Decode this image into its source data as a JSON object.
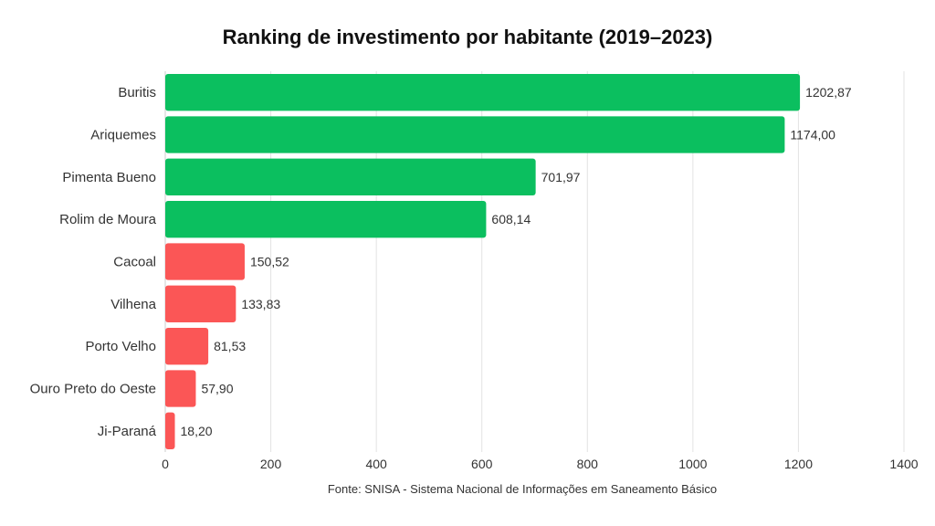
{
  "chart_data": {
    "type": "bar",
    "orientation": "horizontal",
    "title": "Ranking de investimento por habitante (2019–2023)",
    "categories": [
      "Buritis",
      "Ariquemes",
      "Pimenta Bueno",
      "Rolim de Moura",
      "Cacoal",
      "Vilhena",
      "Porto Velho",
      "Ouro Preto do Oeste",
      "Ji-Paraná"
    ],
    "values": [
      1202.87,
      1174.0,
      701.97,
      608.14,
      150.52,
      133.83,
      81.53,
      57.9,
      18.2
    ],
    "value_labels": [
      "1202,87",
      "1174,00",
      "701,97",
      "608,14",
      "150,52",
      "133,83",
      "81,53",
      "57,90",
      "18,20"
    ],
    "bar_colors": [
      "#0bbf5f",
      "#0bbf5f",
      "#0bbf5f",
      "#0bbf5f",
      "#fb5656",
      "#fb5656",
      "#fb5656",
      "#fb5656",
      "#fb5656"
    ],
    "xlim": [
      0,
      1400
    ],
    "xticks": [
      0,
      200,
      400,
      600,
      800,
      1000,
      1200,
      1400
    ],
    "grid": "vertical",
    "source": "Fonte: SNISA - Sistema Nacional de Informações em Saneamento Básico"
  }
}
